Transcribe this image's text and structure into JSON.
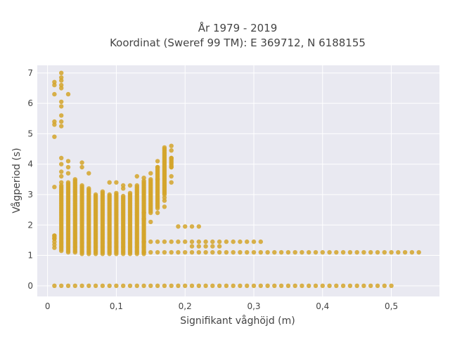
{
  "chart_data": {
    "type": "scatter",
    "title_line1": "År 1979 - 2019",
    "title_line2": "Koordinat (Sweref 99 TM): E 369712, N 6188155",
    "xlabel": "Signifikant våghöjd (m)",
    "ylabel": "Vågperiod (s)",
    "xlim": [
      -0.015,
      0.57
    ],
    "ylim": [
      -0.35,
      7.25
    ],
    "x_ticks": [
      0,
      0.1,
      0.2,
      0.3,
      0.4,
      0.5
    ],
    "x_tick_labels": [
      "0",
      "0,1",
      "0,2",
      "0,3",
      "0,4",
      "0,5"
    ],
    "y_ticks": [
      0,
      1,
      2,
      3,
      4,
      5,
      6,
      7
    ],
    "y_tick_labels": [
      "0",
      "1",
      "2",
      "3",
      "4",
      "5",
      "6",
      "7"
    ],
    "grid": true,
    "colors": {
      "marker": "#d4a52a",
      "plot_background": "#e9e9f1",
      "grid": "#ffffff"
    },
    "series": [
      {
        "points": [
          [
            0.01,
            4.9
          ],
          [
            0.01,
            5.3
          ],
          [
            0.01,
            5.4
          ],
          [
            0.01,
            6.3
          ],
          [
            0.01,
            6.6
          ],
          [
            0.01,
            6.7
          ],
          [
            0.01,
            3.25
          ],
          [
            0.01,
            1.65
          ],
          [
            0.01,
            1.55
          ],
          [
            0.01,
            1.45
          ],
          [
            0.01,
            1.35
          ],
          [
            0.01,
            1.25
          ],
          [
            0.02,
            7.0
          ],
          [
            0.02,
            6.85
          ],
          [
            0.02,
            6.75
          ],
          [
            0.02,
            6.6
          ],
          [
            0.02,
            6.5
          ],
          [
            0.02,
            6.05
          ],
          [
            0.02,
            5.9
          ],
          [
            0.02,
            5.6
          ],
          [
            0.02,
            5.4
          ],
          [
            0.02,
            5.25
          ],
          [
            0.02,
            4.2
          ],
          [
            0.02,
            4.0
          ],
          [
            0.02,
            3.75
          ],
          [
            0.02,
            3.6
          ],
          [
            0.02,
            3.4
          ],
          [
            0.02,
            3.3
          ],
          [
            0.03,
            6.3
          ],
          [
            0.03,
            4.1
          ],
          [
            0.03,
            3.9
          ],
          [
            0.03,
            3.7
          ],
          [
            0.05,
            4.05
          ],
          [
            0.05,
            3.9
          ],
          [
            0.06,
            3.7
          ],
          [
            0.09,
            3.4
          ],
          [
            0.1,
            3.4
          ],
          [
            0.11,
            3.3
          ],
          [
            0.11,
            3.2
          ],
          [
            0.12,
            3.3
          ],
          [
            0.13,
            3.6
          ],
          [
            0.14,
            3.55
          ],
          [
            0.14,
            2.4
          ],
          [
            0.14,
            2.2
          ],
          [
            0.15,
            3.7
          ],
          [
            0.15,
            2.1
          ],
          [
            0.16,
            4.1
          ],
          [
            0.16,
            3.9
          ],
          [
            0.16,
            3.5
          ],
          [
            0.16,
            2.4
          ],
          [
            0.17,
            2.8
          ],
          [
            0.17,
            2.6
          ],
          [
            0.17,
            2.9
          ],
          [
            0.17,
            4.55
          ],
          [
            0.18,
            4.6
          ],
          [
            0.18,
            4.45
          ],
          [
            0.18,
            4.2
          ],
          [
            0.18,
            3.9
          ],
          [
            0.18,
            3.6
          ],
          [
            0.18,
            3.4
          ],
          [
            0.19,
            1.95
          ],
          [
            0.2,
            1.95
          ],
          [
            0.21,
            1.95
          ],
          [
            0.22,
            1.95
          ],
          [
            0.21,
            1.3
          ],
          [
            0.22,
            1.3
          ],
          [
            0.23,
            1.3
          ],
          [
            0.24,
            1.3
          ],
          [
            0.25,
            1.3
          ]
        ],
        "columns": [
          {
            "x": 0.01,
            "ymin": 1.55,
            "ymax": 1.65
          },
          {
            "x": 0.02,
            "ymin": 1.15,
            "ymax": 3.25
          },
          {
            "x": 0.03,
            "ymin": 1.1,
            "ymax": 3.4
          },
          {
            "x": 0.04,
            "ymin": 1.1,
            "ymax": 3.5
          },
          {
            "x": 0.05,
            "ymin": 1.05,
            "ymax": 3.3
          },
          {
            "x": 0.06,
            "ymin": 1.05,
            "ymax": 3.2
          },
          {
            "x": 0.07,
            "ymin": 1.05,
            "ymax": 3.0
          },
          {
            "x": 0.08,
            "ymin": 1.05,
            "ymax": 3.1
          },
          {
            "x": 0.09,
            "ymin": 1.05,
            "ymax": 3.0
          },
          {
            "x": 0.1,
            "ymin": 1.05,
            "ymax": 3.05
          },
          {
            "x": 0.11,
            "ymin": 1.05,
            "ymax": 2.95
          },
          {
            "x": 0.12,
            "ymin": 1.05,
            "ymax": 3.05
          },
          {
            "x": 0.13,
            "ymin": 1.05,
            "ymax": 3.3
          },
          {
            "x": 0.14,
            "ymin": 1.05,
            "ymax": 3.45
          },
          {
            "x": 0.15,
            "ymin": 2.4,
            "ymax": 3.5
          },
          {
            "x": 0.16,
            "ymin": 2.55,
            "ymax": 3.9
          },
          {
            "x": 0.17,
            "ymin": 3.0,
            "ymax": 4.5
          },
          {
            "x": 0.18,
            "ymin": 3.9,
            "ymax": 4.2
          }
        ],
        "rows": [
          {
            "y": 0.0,
            "xmin": 0.01,
            "xmax": 0.5
          },
          {
            "y": 1.1,
            "xmin": 0.14,
            "xmax": 0.54
          },
          {
            "y": 1.45,
            "xmin": 0.14,
            "xmax": 0.31
          }
        ]
      }
    ]
  }
}
